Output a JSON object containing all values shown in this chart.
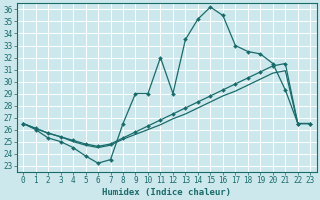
{
  "xlabel": "Humidex (Indice chaleur)",
  "bg_color": "#cce8ec",
  "grid_color": "#ffffff",
  "line_color": "#1a6b6b",
  "xlim": [
    -0.5,
    23.5
  ],
  "ylim": [
    22.5,
    36.5
  ],
  "xticks": [
    0,
    1,
    2,
    3,
    4,
    5,
    6,
    7,
    8,
    9,
    10,
    11,
    12,
    13,
    14,
    15,
    16,
    17,
    18,
    19,
    20,
    21,
    22,
    23
  ],
  "yticks": [
    23,
    24,
    25,
    26,
    27,
    28,
    29,
    30,
    31,
    32,
    33,
    34,
    35,
    36
  ],
  "line1_x": [
    0,
    1,
    2,
    3,
    4,
    5,
    6,
    7,
    8,
    9,
    10,
    11,
    12,
    13,
    14,
    15,
    16,
    17,
    18,
    19,
    20,
    21,
    22,
    23
  ],
  "line1_y": [
    26.5,
    26.0,
    25.3,
    25.0,
    24.5,
    23.8,
    23.2,
    23.5,
    26.5,
    29.0,
    29.0,
    32.0,
    29.0,
    33.5,
    35.2,
    36.2,
    35.5,
    33.0,
    32.5,
    32.3,
    31.5,
    29.3,
    26.5,
    26.5
  ],
  "line2_x": [
    0,
    1,
    2,
    3,
    4,
    5,
    6,
    7,
    8,
    9,
    10,
    11,
    12,
    13,
    14,
    15,
    16,
    17,
    18,
    19,
    20,
    21,
    22,
    23
  ],
  "line2_y": [
    26.5,
    26.1,
    25.7,
    25.4,
    25.1,
    24.8,
    24.6,
    24.8,
    25.3,
    25.8,
    26.3,
    26.8,
    27.3,
    27.8,
    28.3,
    28.8,
    29.3,
    29.8,
    30.3,
    30.8,
    31.3,
    31.5,
    26.5,
    26.5
  ],
  "line3_x": [
    0,
    1,
    2,
    3,
    4,
    5,
    6,
    7,
    8,
    9,
    10,
    11,
    12,
    13,
    14,
    15,
    16,
    17,
    18,
    19,
    20,
    21,
    22,
    23
  ],
  "line3_y": [
    26.5,
    26.1,
    25.7,
    25.4,
    25.0,
    24.7,
    24.5,
    24.7,
    25.2,
    25.6,
    26.0,
    26.4,
    26.9,
    27.3,
    27.8,
    28.3,
    28.8,
    29.2,
    29.7,
    30.2,
    30.7,
    30.9,
    26.5,
    26.5
  ],
  "tick_fontsize": 5.5,
  "xlabel_fontsize": 6.5
}
